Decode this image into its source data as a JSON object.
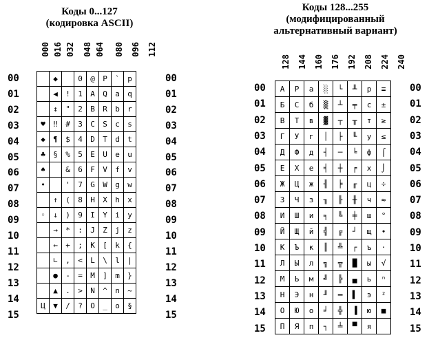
{
  "left": {
    "title_lines": [
      "Коды 0...127",
      "(кодировка ASCII)"
    ],
    "col_headers": [
      "000",
      "016",
      "032",
      "048",
      "064",
      "080",
      "096",
      "112"
    ],
    "row_labels": [
      "00",
      "01",
      "02",
      "03",
      "04",
      "05",
      "06",
      "07",
      "08",
      "09",
      "10",
      "11",
      "12",
      "13",
      "14",
      "15"
    ],
    "rows": [
      [
        "",
        "◆",
        "",
        "0",
        "@",
        "P",
        "`",
        "p"
      ],
      [
        "",
        "◀",
        "!",
        "1",
        "A",
        "Q",
        "a",
        "q"
      ],
      [
        "",
        "↕",
        "\"",
        "2",
        "B",
        "R",
        "b",
        "r"
      ],
      [
        "♥",
        "‼",
        "#",
        "3",
        "C",
        "S",
        "c",
        "s"
      ],
      [
        "◆",
        "¶",
        "$",
        "4",
        "D",
        "T",
        "d",
        "t"
      ],
      [
        "♣",
        "§",
        "%",
        "5",
        "E",
        "U",
        "e",
        "u"
      ],
      [
        "♠",
        "",
        "&",
        "6",
        "F",
        "V",
        "f",
        "v"
      ],
      [
        "•",
        "",
        "'",
        "7",
        "G",
        "W",
        "g",
        "w"
      ],
      [
        "",
        "↑",
        "(",
        "8",
        "H",
        "X",
        "h",
        "x"
      ],
      [
        "◦",
        "↓",
        ")",
        "9",
        "I",
        "Y",
        "i",
        "y"
      ],
      [
        "",
        "→",
        "*",
        ":",
        "J",
        "Z",
        "j",
        "z"
      ],
      [
        "",
        "←",
        "+",
        ";",
        "K",
        "[",
        "k",
        "{"
      ],
      [
        "",
        "∟",
        ",",
        "<",
        "L",
        "\\",
        "l",
        "|"
      ],
      [
        "",
        "●",
        "-",
        "=",
        "M",
        "]",
        "m",
        "}"
      ],
      [
        "",
        "▲",
        ".",
        ">",
        "N",
        "^",
        "n",
        "~"
      ],
      [
        "Ц",
        "▼",
        "/",
        "?",
        "O",
        "_",
        "o",
        "§"
      ]
    ]
  },
  "right": {
    "title_lines": [
      "Коды 128...255",
      "(модифицированный",
      "альтернативный вариант)"
    ],
    "col_headers": [
      "128",
      "144",
      "160",
      "176",
      "192",
      "208",
      "224",
      "240"
    ],
    "row_labels": [
      "00",
      "01",
      "02",
      "03",
      "04",
      "05",
      "06",
      "07",
      "08",
      "09",
      "10",
      "11",
      "12",
      "13",
      "14",
      "15"
    ],
    "rows": [
      [
        "А",
        "Р",
        "а",
        "░",
        "└",
        "╨",
        "р",
        "≡"
      ],
      [
        "Б",
        "С",
        "б",
        "▒",
        "┴",
        "╤",
        "с",
        "±"
      ],
      [
        "В",
        "Т",
        "в",
        "▓",
        "┬",
        "╥",
        "т",
        "≥"
      ],
      [
        "Г",
        "У",
        "г",
        "│",
        "├",
        "╙",
        "у",
        "≤"
      ],
      [
        "Д",
        "Ф",
        "д",
        "┤",
        "─",
        "╘",
        "ф",
        "⌠"
      ],
      [
        "Е",
        "Х",
        "е",
        "╡",
        "┼",
        "╒",
        "х",
        "⌡"
      ],
      [
        "Ж",
        "Ц",
        "ж",
        "╢",
        "╞",
        "╓",
        "ц",
        "÷"
      ],
      [
        "З",
        "Ч",
        "з",
        "╖",
        "╟",
        "╫",
        "ч",
        "≈"
      ],
      [
        "И",
        "Ш",
        "и",
        "╕",
        "╚",
        "╪",
        "ш",
        "°"
      ],
      [
        "Й",
        "Щ",
        "й",
        "╣",
        "╔",
        "┘",
        "щ",
        "∙"
      ],
      [
        "К",
        "Ъ",
        "к",
        "║",
        "╩",
        "┌",
        "ъ",
        "·"
      ],
      [
        "Л",
        "Ы",
        "л",
        "╗",
        "╦",
        "█",
        "ы",
        "√"
      ],
      [
        "М",
        "Ь",
        "м",
        "╝",
        "╠",
        "▄",
        "ь",
        "ⁿ"
      ],
      [
        "Н",
        "Э",
        "н",
        "╜",
        "═",
        "▌",
        "э",
        "²"
      ],
      [
        "О",
        "Ю",
        "о",
        "╛",
        "╬",
        "▐",
        "ю",
        "■"
      ],
      [
        "П",
        "Я",
        "п",
        "┐",
        "╧",
        "▀",
        "я",
        " "
      ]
    ]
  }
}
